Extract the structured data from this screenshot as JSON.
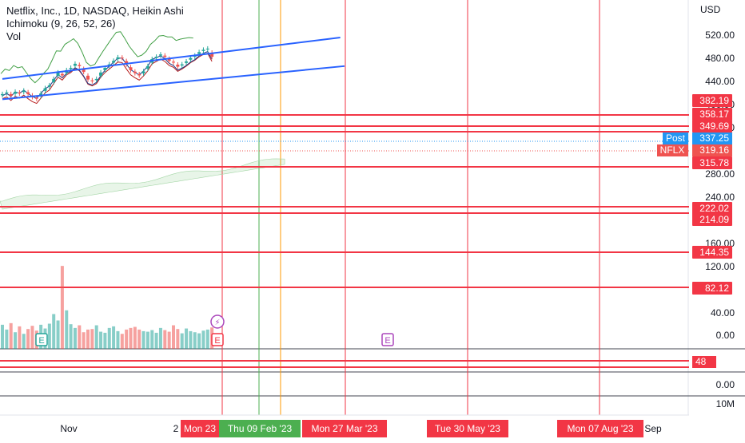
{
  "header": {
    "title": "Netflix, Inc., 1D, NASDAQ, Heikin Ashi",
    "indicator": "Ichimoku (9, 26, 52, 26)",
    "volume": "Vol"
  },
  "axis": {
    "currency": "USD",
    "price_ticks": [
      "520.00",
      "480.00",
      "440.00",
      "400.00",
      "360.00",
      "280.00",
      "240.00",
      "160.00",
      "120.00",
      "40.00",
      "0.00"
    ],
    "lower_ticks": [
      "0.00",
      "10M"
    ],
    "time_ticks": [
      "Nov",
      "2",
      "Sep"
    ]
  },
  "price_levels": [
    {
      "value": "382.19"
    },
    {
      "value": "358.17"
    },
    {
      "value": "349.69"
    },
    {
      "value": "315.78"
    },
    {
      "value": "222.02"
    },
    {
      "value": "214.09"
    },
    {
      "value": "144.35"
    },
    {
      "value": "82.12"
    }
  ],
  "post_badge": {
    "label": "Post",
    "value": "337.25"
  },
  "symbol_badge": {
    "label": "NFLX",
    "value": "319.16"
  },
  "lower_pane_badge": "48",
  "event_markers": [
    "E",
    "E",
    "E"
  ],
  "dividend_marker": "⚡",
  "date_labels": [
    {
      "text": "Mon 23",
      "color": "#f23645"
    },
    {
      "text": "Thu 09 Feb '23",
      "color": "#4caf50"
    },
    {
      "text": "Mon 27 Mar '23",
      "color": "#f23645"
    },
    {
      "text": "Tue 30 May '23",
      "color": "#f23645"
    },
    {
      "text": "Mon 07 Aug '23",
      "color": "#f23645"
    }
  ],
  "colors": {
    "up": "#26a69a",
    "down": "#ef5350",
    "level": "#f23645",
    "trend": "#2962ff",
    "post": "#2196f3"
  },
  "chart_data": {
    "type": "candlestick",
    "title": "Netflix, Inc., 1D, NASDAQ, Heikin Ashi",
    "ylabel": "USD",
    "ylim": [
      0,
      540
    ],
    "horizontal_levels": [
      382.19,
      358.17,
      349.69,
      315.78,
      222.02,
      214.09,
      144.35,
      82.12
    ],
    "last_price": 319.16,
    "post_market_price": 337.25,
    "candles_close": [
      255,
      258,
      252,
      259,
      256,
      261,
      255,
      250,
      247,
      256,
      265,
      270,
      281,
      292,
      287,
      296,
      300,
      307,
      303,
      293,
      280,
      277,
      281,
      292,
      300,
      306,
      312,
      318,
      317,
      306,
      296,
      291,
      287,
      294,
      303,
      315,
      319,
      323,
      319,
      312,
      309,
      302,
      306,
      311,
      317,
      321,
      327,
      331,
      333,
      319
    ],
    "volume_scale_max_M": 17,
    "volumes_M": [
      4.5,
      3.6,
      4.8,
      3.1,
      4.2,
      2.8,
      3.7,
      4.3,
      3.4,
      4.5,
      3.8,
      4.7,
      6.5,
      5.3,
      15.5,
      7.2,
      4.6,
      3.9,
      4.4,
      3.1,
      3.6,
      3.7,
      4.4,
      3.2,
      3.0,
      3.9,
      4.2,
      3.3,
      2.8,
      3.6,
      3.9,
      4.1,
      3.6,
      3.3,
      3.2,
      3.5,
      3.0,
      3.9,
      3.5,
      3.2,
      4.4,
      3.7,
      2.9,
      3.8,
      3.3,
      3.1,
      2.9,
      3.4,
      3.6,
      4.0
    ],
    "trendlines": [
      {
        "from": [
          0,
          281
        ],
        "to": [
          79,
          352
        ]
      },
      {
        "from": [
          0,
          246
        ],
        "to": [
          80,
          303
        ]
      }
    ]
  }
}
